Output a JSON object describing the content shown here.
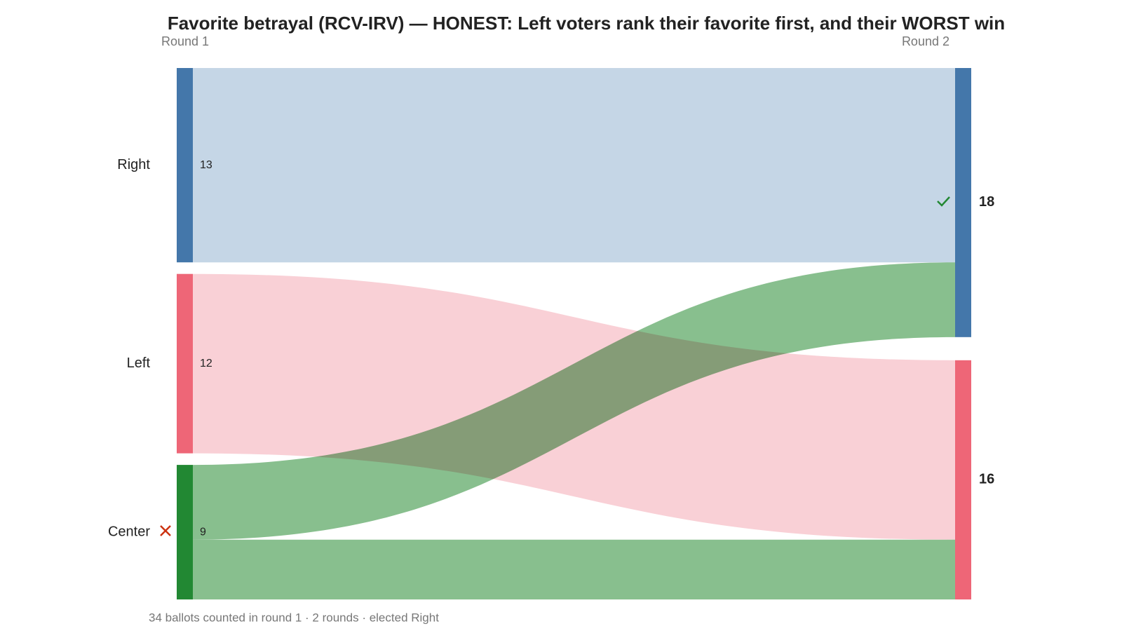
{
  "chart_data": {
    "type": "sankey",
    "title": "Favorite betrayal (RCV-IRV) — HONEST: Left voters rank their favorite first, and their WORST win",
    "columns": [
      "Round 1",
      "Round 2"
    ],
    "nodes": [
      {
        "name": "Right",
        "column": 0,
        "value": 13,
        "color": "#4477aa"
      },
      {
        "name": "Left",
        "column": 0,
        "value": 12,
        "color": "#ee6677"
      },
      {
        "name": "Center",
        "column": 0,
        "value": 9,
        "color": "#228833"
      },
      {
        "column": 1,
        "value": 18,
        "color": "#4477aa"
      },
      {
        "column": 1,
        "value": 16,
        "color": "#ee6677"
      }
    ],
    "links": [
      {
        "source": 0,
        "target": 3,
        "value": 13,
        "color": "#c5d6e6"
      },
      {
        "source": 1,
        "target": 4,
        "value": 12,
        "color": "#f9d0d6"
      },
      {
        "source": 2,
        "target": 3,
        "value": 5,
        "color": "#88bf8e"
      },
      {
        "source": 2,
        "target": 4,
        "value": 4,
        "color": "#88bf8e"
      }
    ],
    "footer": "34 ballots counted in round 1 · 2 rounds · elected Right"
  }
}
